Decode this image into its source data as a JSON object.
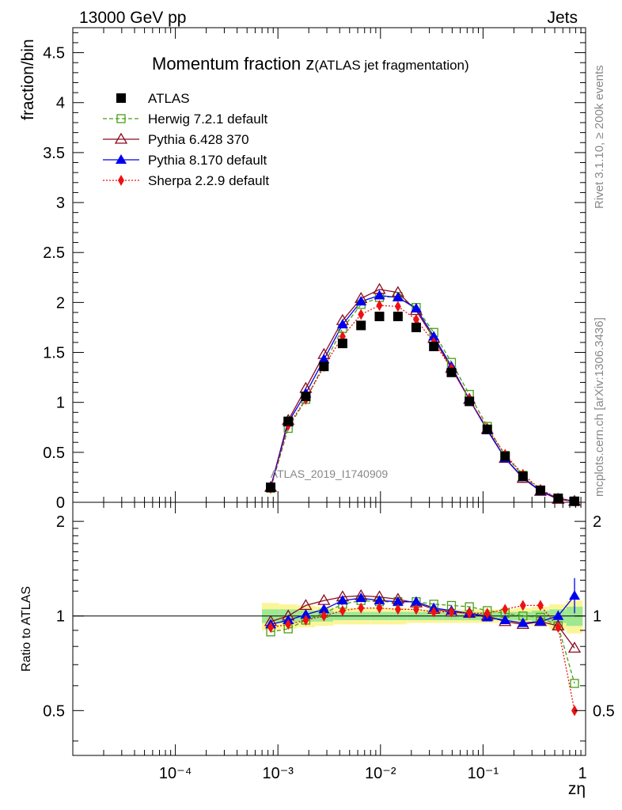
{
  "header": {
    "left": "13000 GeV pp",
    "right": "Jets"
  },
  "side": {
    "rivet": "Rivet 3.1.10, ≥ 200k events",
    "mcplots": "mcplots.cern.ch [arXiv:1306.3436]"
  },
  "chart_data": {
    "type": "line",
    "title_main": "Momentum fraction z",
    "title_sub": "(ATLAS jet fragmentation)",
    "analysis_label": "ATLAS_2019_I1740909",
    "xlabel": "zη",
    "ylabel": "fraction/bin",
    "ratio_ylabel": "Ratio to ATLAS",
    "x_scale": "log",
    "xlim": [
      1e-05,
      1
    ],
    "ylim": [
      0,
      4.75
    ],
    "ratio_ylim": [
      0.36,
      2.3
    ],
    "x_tick_labels": [
      "10⁻⁴",
      "10⁻³",
      "10⁻²",
      "10⁻¹",
      "1"
    ],
    "y_tick_labels": [
      "0",
      "0.5",
      "1",
      "1.5",
      "2",
      "2.5",
      "3",
      "3.5",
      "4",
      "4.5"
    ],
    "ratio_tick_labels": [
      "0.5",
      "1",
      "2"
    ],
    "legend_position": "top-left",
    "x": [
      0.00085,
      0.00126,
      0.00187,
      0.00281,
      0.00427,
      0.00646,
      0.00977,
      0.0148,
      0.0223,
      0.0331,
      0.0492,
      0.0736,
      0.11,
      0.164,
      0.245,
      0.363,
      0.54,
      0.78
    ],
    "series": [
      {
        "name": "ATLAS",
        "color": "#000000",
        "style": "data",
        "marker": "square-filled",
        "values": [
          0.15,
          0.81,
          1.06,
          1.36,
          1.59,
          1.77,
          1.86,
          1.86,
          1.75,
          1.56,
          1.3,
          1.01,
          0.73,
          0.46,
          0.26,
          0.12,
          0.04,
          0.01
        ]
      },
      {
        "name": "Herwig 7.2.1 default",
        "color": "#4a9e18",
        "style": "dashed",
        "marker": "square-open",
        "values": [
          0.14,
          0.74,
          1.03,
          1.38,
          1.74,
          1.98,
          2.05,
          2.06,
          1.95,
          1.7,
          1.4,
          1.08,
          0.76,
          0.47,
          0.27,
          0.12,
          0.04,
          0.01
        ]
      },
      {
        "name": "Pythia 6.428 370",
        "color": "#8b0a1e",
        "style": "solid",
        "marker": "triangle-open",
        "values": [
          0.15,
          0.82,
          1.14,
          1.48,
          1.82,
          2.04,
          2.13,
          2.1,
          1.92,
          1.64,
          1.34,
          1.03,
          0.73,
          0.44,
          0.24,
          0.11,
          0.03,
          0.01
        ]
      },
      {
        "name": "Pythia 8.170 default",
        "color": "#0000ee",
        "style": "solid",
        "marker": "triangle-filled",
        "values": [
          0.15,
          0.8,
          1.09,
          1.43,
          1.78,
          2.01,
          2.07,
          2.05,
          1.94,
          1.66,
          1.36,
          1.03,
          0.72,
          0.44,
          0.25,
          0.11,
          0.04,
          0.01
        ]
      },
      {
        "name": "Sherpa 2.2.9 default",
        "color": "#ee1111",
        "style": "dotted",
        "marker": "diamond-filled",
        "values": [
          0.14,
          0.77,
          1.03,
          1.36,
          1.66,
          1.88,
          1.97,
          1.96,
          1.83,
          1.6,
          1.34,
          1.03,
          0.74,
          0.48,
          0.28,
          0.13,
          0.04,
          0.01
        ]
      }
    ],
    "ratio_series": [
      {
        "name": "Herwig 7.2.1 default",
        "values": [
          0.89,
          0.91,
          0.97,
          1.02,
          1.09,
          1.12,
          1.11,
          1.11,
          1.11,
          1.09,
          1.08,
          1.07,
          1.04,
          1.02,
          1.0,
          0.99,
          0.93,
          0.61
        ]
      },
      {
        "name": "Pythia 6.428 370",
        "values": [
          0.96,
          1.0,
          1.08,
          1.12,
          1.15,
          1.16,
          1.15,
          1.13,
          1.1,
          1.05,
          1.03,
          1.02,
          1.0,
          0.96,
          0.94,
          0.96,
          0.93,
          0.79
        ]
      },
      {
        "name": "Pythia 8.170 default",
        "values": [
          0.94,
          0.97,
          1.01,
          1.05,
          1.12,
          1.14,
          1.12,
          1.11,
          1.11,
          1.06,
          1.04,
          1.02,
          0.99,
          0.97,
          0.95,
          0.96,
          1.0,
          1.16
        ]
      },
      {
        "name": "Sherpa 2.2.9 default",
        "values": [
          0.92,
          0.94,
          0.97,
          1.0,
          1.04,
          1.06,
          1.06,
          1.05,
          1.05,
          1.03,
          1.03,
          1.02,
          1.02,
          1.05,
          1.08,
          1.08,
          0.92,
          0.5
        ]
      }
    ]
  }
}
